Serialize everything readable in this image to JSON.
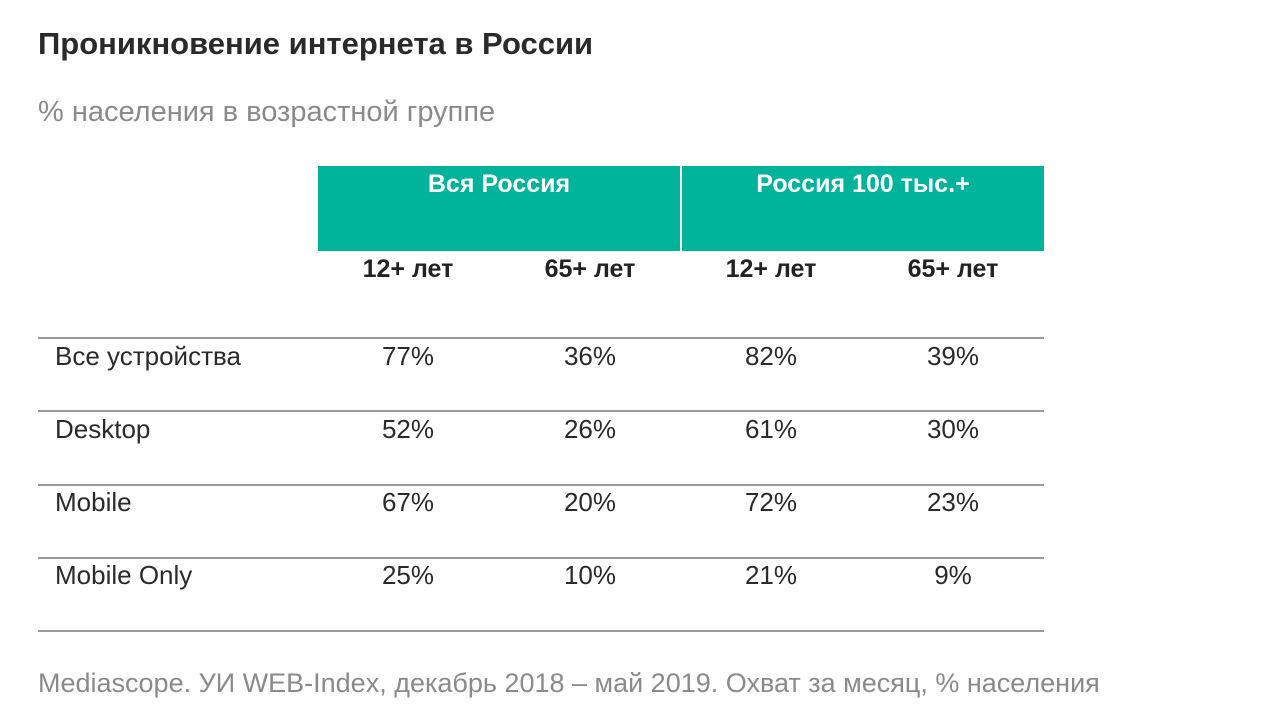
{
  "title": "Проникновение интернета в России",
  "subtitle": "% населения в возрастной группе",
  "source": "Mediascope. УИ WEB-Index, декабрь 2018 – май 2019. Охват за месяц, % населения",
  "colors": {
    "header_bg": "#00b39b",
    "header_text": "#ffffff",
    "rule": "#9a9a9a",
    "muted": "#8a8a8a"
  },
  "chart_data": {
    "type": "table",
    "title": "Проникновение интернета в России",
    "subtitle": "% населения в возрастной группе",
    "groups": [
      {
        "label": "Вся Россия",
        "columns": [
          "12+ лет",
          "65+ лет"
        ]
      },
      {
        "label": "Россия 100 тыс.+",
        "columns": [
          "12+ лет",
          "65+ лет"
        ]
      }
    ],
    "rows": [
      {
        "label": "Все устройства",
        "values": [
          "77%",
          "36%",
          "82%",
          "39%"
        ]
      },
      {
        "label": "Desktop",
        "values": [
          "52%",
          "26%",
          "61%",
          "30%"
        ]
      },
      {
        "label": "Mobile",
        "values": [
          "67%",
          "20%",
          "72%",
          "23%"
        ]
      },
      {
        "label": "Mobile Only",
        "values": [
          "25%",
          "10%",
          "21%",
          "9%"
        ]
      }
    ]
  }
}
